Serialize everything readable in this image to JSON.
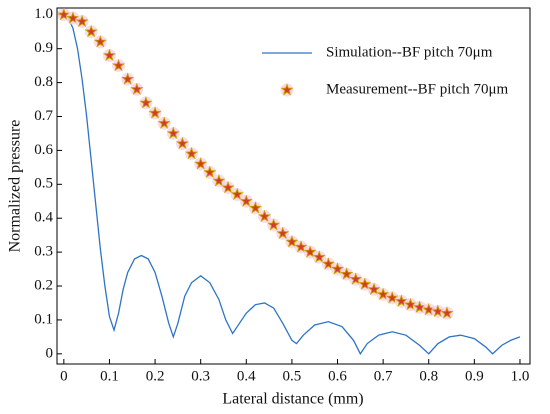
{
  "chart_data": {
    "type": "line",
    "xlabel": "Lateral distance (mm)",
    "ylabel": "Normalized pressure",
    "xlim": [
      -0.015,
      1.022
    ],
    "ylim": [
      -0.03,
      1.02
    ],
    "xticks": [
      0,
      0.1,
      0.2,
      0.3,
      0.4,
      0.5,
      0.6,
      0.7,
      0.8,
      0.9,
      {
        "value": 1,
        "label": "1.0"
      }
    ],
    "yticks": [
      0,
      0.1,
      0.2,
      0.3,
      0.4,
      0.5,
      0.6,
      0.7,
      0.8,
      0.9,
      {
        "value": 1,
        "label": "1.0"
      }
    ],
    "grid": false,
    "legend": "upper right",
    "series": [
      {
        "name": "Simulation--BF pitch 70μm",
        "color": "#2e74c6",
        "mode": "lines",
        "x": [
          0,
          0.01,
          0.02,
          0.03,
          0.04,
          0.05,
          0.06,
          0.07,
          0.08,
          0.09,
          0.1,
          0.11,
          0.12,
          0.13,
          0.14,
          0.155,
          0.17,
          0.185,
          0.2,
          0.215,
          0.23,
          0.24,
          0.25,
          0.265,
          0.28,
          0.3,
          0.32,
          0.34,
          0.355,
          0.37,
          0.385,
          0.4,
          0.42,
          0.44,
          0.46,
          0.48,
          0.5,
          0.51,
          0.525,
          0.55,
          0.58,
          0.61,
          0.635,
          0.65,
          0.665,
          0.69,
          0.72,
          0.75,
          0.78,
          0.8,
          0.82,
          0.845,
          0.87,
          0.9,
          0.925,
          0.94,
          0.96,
          0.98,
          1.0
        ],
        "values": [
          1.0,
          0.99,
          0.96,
          0.9,
          0.81,
          0.7,
          0.57,
          0.44,
          0.31,
          0.2,
          0.11,
          0.07,
          0.12,
          0.19,
          0.24,
          0.28,
          0.29,
          0.28,
          0.24,
          0.17,
          0.09,
          0.05,
          0.09,
          0.17,
          0.21,
          0.23,
          0.21,
          0.16,
          0.1,
          0.06,
          0.09,
          0.12,
          0.145,
          0.15,
          0.135,
          0.09,
          0.04,
          0.03,
          0.055,
          0.085,
          0.095,
          0.08,
          0.04,
          0.0,
          0.03,
          0.055,
          0.065,
          0.055,
          0.025,
          0.0,
          0.03,
          0.05,
          0.055,
          0.045,
          0.02,
          0.0,
          0.025,
          0.04,
          0.05
        ]
      },
      {
        "name": "Measurement--BF pitch 70μm",
        "color": "#d63a2a",
        "mode": "markers",
        "x": [
          0,
          0.02,
          0.04,
          0.06,
          0.08,
          0.1,
          0.12,
          0.14,
          0.16,
          0.18,
          0.2,
          0.22,
          0.24,
          0.26,
          0.28,
          0.3,
          0.32,
          0.34,
          0.36,
          0.38,
          0.4,
          0.42,
          0.44,
          0.46,
          0.48,
          0.5,
          0.52,
          0.54,
          0.56,
          0.58,
          0.6,
          0.62,
          0.64,
          0.66,
          0.68,
          0.7,
          0.72,
          0.74,
          0.76,
          0.78,
          0.8,
          0.82,
          0.84
        ],
        "values": [
          1.0,
          0.99,
          0.98,
          0.95,
          0.92,
          0.88,
          0.85,
          0.81,
          0.78,
          0.74,
          0.71,
          0.68,
          0.65,
          0.62,
          0.59,
          0.56,
          0.535,
          0.51,
          0.49,
          0.47,
          0.45,
          0.43,
          0.405,
          0.38,
          0.355,
          0.33,
          0.315,
          0.3,
          0.285,
          0.265,
          0.25,
          0.235,
          0.22,
          0.205,
          0.19,
          0.175,
          0.165,
          0.155,
          0.145,
          0.137,
          0.13,
          0.125,
          0.12
        ]
      }
    ]
  }
}
